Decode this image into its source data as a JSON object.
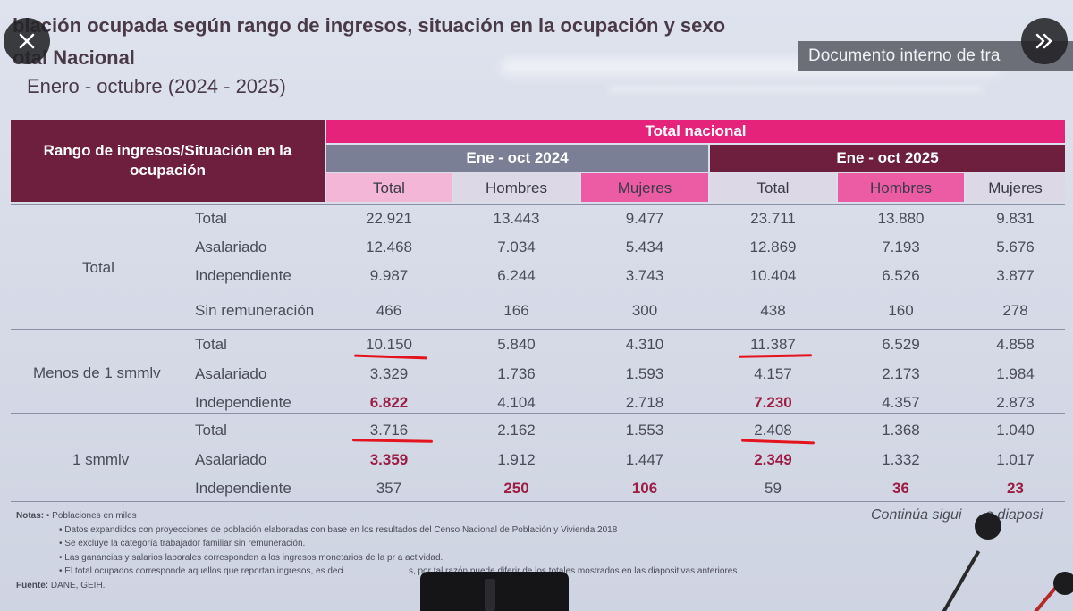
{
  "slide": {
    "title": "blación ocupada según rango de ingresos, situación en la ocupación y sexo",
    "subtitle1": "otal Nacional",
    "subtitle2": "Enero - octubre (2024 - 2025)",
    "badge": "Documento interno de tra"
  },
  "table": {
    "corner_header": "Rango de ingresos/Situación en la ocupación",
    "band_header": "Total nacional",
    "periods": [
      "Ene - oct 2024",
      "Ene - oct 2025"
    ],
    "columns": [
      "Total",
      "Hombres",
      "Mujeres",
      "Total",
      "Hombres",
      "Mujeres"
    ],
    "groups": [
      {
        "label": "Total",
        "rows": [
          {
            "label": "Total",
            "values": [
              "22.921",
              "13.443",
              "9.477",
              "23.711",
              "13.880",
              "9.831"
            ]
          },
          {
            "label": "Asalariado",
            "values": [
              "12.468",
              "7.034",
              "5.434",
              "12.869",
              "7.193",
              "5.676"
            ]
          },
          {
            "label": "Independiente",
            "values": [
              "9.987",
              "6.244",
              "3.743",
              "10.404",
              "6.526",
              "3.877"
            ]
          },
          {
            "label": "Sin remuneración",
            "values": [
              "466",
              "166",
              "300",
              "438",
              "160",
              "278"
            ]
          }
        ]
      },
      {
        "label": "Menos de 1 smmlv",
        "rows": [
          {
            "label": "Total",
            "values": [
              "10.150",
              "5.840",
              "4.310",
              "11.387",
              "6.529",
              "4.858"
            ]
          },
          {
            "label": "Asalariado",
            "values": [
              "3.329",
              "1.736",
              "1.593",
              "4.157",
              "2.173",
              "1.984"
            ]
          },
          {
            "label": "Independiente",
            "values": [
              "6.822",
              "4.104",
              "2.718",
              "7.230",
              "4.357",
              "2.873"
            ]
          }
        ]
      },
      {
        "label": "1 smmlv",
        "rows": [
          {
            "label": "Total",
            "values": [
              "3.716",
              "2.162",
              "1.553",
              "2.408",
              "1.368",
              "1.040"
            ]
          },
          {
            "label": "Asalariado",
            "values": [
              "3.359",
              "1.912",
              "1.447",
              "2.349",
              "1.332",
              "1.017"
            ]
          },
          {
            "label": "Independiente",
            "values": [
              "357",
              "250",
              "106",
              "59",
              "36",
              "23"
            ]
          }
        ]
      }
    ]
  },
  "notes": {
    "label": "Notas:",
    "lines": [
      "• Poblaciones en miles",
      "• Datos expandidos con proyecciones de población elaboradas con base en los resultados del Censo Nacional de Población y Vivienda 2018",
      "• Se excluye la categoría trabajador familiar sin remuneración.",
      "• Las ganancias y salarios laborales corresponden a los ingresos monetarios de la pr   a actividad.",
      "• El total ocupados corresponde aquellos que reportan ingresos, es deci                          s, por tal razón puede diferir de los totales mostrados en las diapositivas anteriores."
    ],
    "source_label": "Fuente:",
    "source": "DANE, GEIH."
  },
  "continue_text": "Continúa sigui      e diaposi",
  "controls": {
    "close_icon": "close-icon",
    "next_icon": "double-chevron-right-icon"
  },
  "colors": {
    "magenta": "#e6237a",
    "wine": "#6e1f3e",
    "highlight_text": "#9c1d44",
    "annotation_red": "#e4141e"
  }
}
